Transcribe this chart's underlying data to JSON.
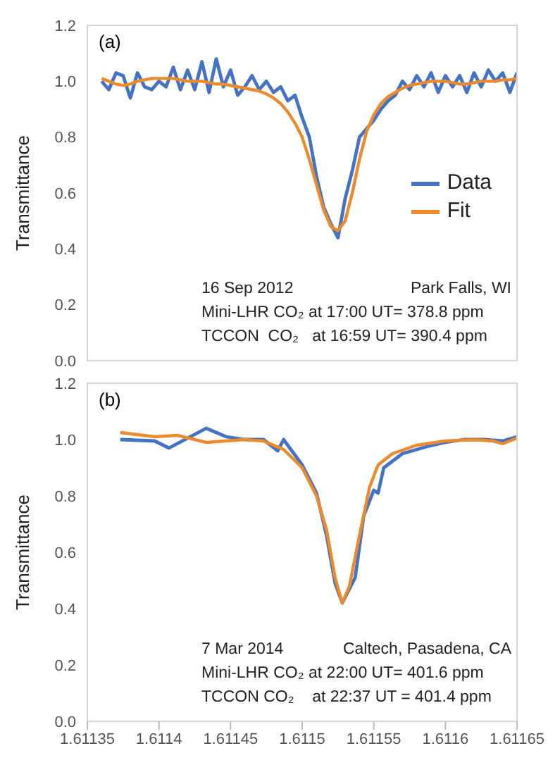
{
  "chart_data": [
    {
      "type": "line",
      "ylabel": "Transmittance",
      "xlim": [
        1.61135,
        1.61165
      ],
      "xticks": [
        1.61135,
        1.6114,
        1.61145,
        1.6115,
        1.61155,
        1.6116,
        1.61165
      ],
      "ylim": [
        0,
        1.2
      ],
      "yticks": [
        {
          "value": 0,
          "label": "0.0"
        },
        {
          "value": 0.2,
          "label": "0.2"
        },
        {
          "value": 0.4,
          "label": "0.4"
        },
        {
          "value": 0.6,
          "label": "0.6"
        },
        {
          "value": 0.8,
          "label": "0.8"
        },
        {
          "value": 1,
          "label": "1.0"
        },
        {
          "value": 1.2,
          "label": "1.2"
        }
      ],
      "tick_labels": "y",
      "grid": false,
      "legend": "right",
      "marker": "none",
      "line_style": "solid",
      "annotations": [
        "(a)",
        "16 Sep 2012",
        "Park Falls, WI",
        "Mini-LHR CO₂ at 17:00 UT= 378.8 ppm",
        "TCCON  CO₂   at 16:59 UT= 390.4 ppm"
      ],
      "x": [
        1.61136,
        1.611365,
        1.61137,
        1.611375,
        1.61138,
        1.611385,
        1.61139,
        1.611395,
        1.6114,
        1.611405,
        1.61141,
        1.611415,
        1.61142,
        1.611425,
        1.61143,
        1.611435,
        1.61144,
        1.611445,
        1.61145,
        1.611455,
        1.61146,
        1.611465,
        1.61147,
        1.611475,
        1.61148,
        1.611485,
        1.61149,
        1.611495,
        1.6115,
        1.611505,
        1.61151,
        1.611515,
        1.61152,
        1.611525,
        1.61153,
        1.611535,
        1.61154,
        1.611545,
        1.61155,
        1.611555,
        1.61156,
        1.611565,
        1.61157,
        1.611575,
        1.61158,
        1.611585,
        1.61159,
        1.611595,
        1.6116,
        1.611605,
        1.61161,
        1.611615,
        1.61162,
        1.611625,
        1.61163,
        1.611635,
        1.61164,
        1.611645,
        1.61165
      ],
      "series": [
        {
          "name": "Data",
          "color": "#4472c4",
          "values": [
            1.0,
            0.97,
            1.03,
            1.02,
            0.94,
            1.03,
            0.98,
            0.97,
            1.0,
            0.98,
            1.05,
            0.97,
            1.04,
            0.97,
            1.07,
            0.96,
            1.08,
            0.98,
            1.04,
            0.95,
            0.98,
            1.02,
            0.97,
            1.0,
            0.96,
            0.98,
            0.93,
            0.95,
            0.87,
            0.8,
            0.66,
            0.55,
            0.49,
            0.44,
            0.58,
            0.68,
            0.8,
            0.83,
            0.86,
            0.9,
            0.93,
            0.95,
            1.0,
            0.97,
            1.02,
            0.98,
            1.03,
            0.96,
            1.02,
            0.98,
            1.02,
            0.96,
            1.03,
            0.98,
            1.04,
            1.0,
            1.03,
            0.96,
            1.03
          ]
        },
        {
          "name": "Fit",
          "color": "#ed8b2c",
          "values": [
            1.01,
            1.0,
            0.99,
            0.985,
            0.99,
            1.0,
            1.005,
            1.01,
            1.01,
            1.01,
            1.01,
            1.005,
            1.0,
            1.0,
            1.0,
            0.995,
            0.99,
            0.99,
            0.985,
            0.98,
            0.975,
            0.97,
            0.965,
            0.955,
            0.94,
            0.92,
            0.89,
            0.85,
            0.8,
            0.72,
            0.63,
            0.54,
            0.48,
            0.465,
            0.5,
            0.6,
            0.72,
            0.82,
            0.88,
            0.92,
            0.945,
            0.96,
            0.975,
            0.985,
            0.99,
            0.995,
            1.0,
            1.0,
            1.0,
            0.995,
            0.99,
            0.99,
            0.995,
            1.0,
            1.0,
            1.0,
            1.005,
            1.005,
            1.01
          ]
        }
      ]
    },
    {
      "type": "line",
      "ylabel": "Transmittance",
      "xlim": [
        1.61135,
        1.61165
      ],
      "xticks": [
        1.61135,
        1.6114,
        1.61145,
        1.6115,
        1.61155,
        1.6116,
        1.61165
      ],
      "ylim": [
        0,
        1.2
      ],
      "yticks": [
        {
          "value": 0,
          "label": "0.0"
        },
        {
          "value": 0.2,
          "label": "0.2"
        },
        {
          "value": 0.4,
          "label": "0.4"
        },
        {
          "value": 0.6,
          "label": "0.6"
        },
        {
          "value": 0.8,
          "label": "0.8"
        },
        {
          "value": 1,
          "label": "1.0"
        },
        {
          "value": 1.2,
          "label": "1.2"
        }
      ],
      "grid": false,
      "marker": "none",
      "line_style": "solid",
      "annotations": [
        "(b)",
        "7 Mar 2014",
        "Caltech, Pasadena, CA",
        "Mini-LHR CO₂ at 22:00 UT= 401.6 ppm",
        "TCCON CO₂    at 22:37 UT = 401.4 ppm"
      ],
      "series": [
        {
          "color": "#4472c4",
          "x": [
            1.611373,
            1.611397,
            1.611407,
            1.611433,
            1.611447,
            1.61146,
            1.611473,
            1.611483,
            1.611487,
            1.6115,
            1.61151,
            1.611517,
            1.611523,
            1.611528,
            1.611537,
            1.611543,
            1.61155,
            1.611553,
            1.611557,
            1.61157,
            1.611587,
            1.6116,
            1.611613,
            1.611627,
            1.61164,
            1.61165
          ],
          "values": [
            1.0,
            0.995,
            0.97,
            1.04,
            1.01,
            1.0,
            1.0,
            0.96,
            1.0,
            0.91,
            0.81,
            0.66,
            0.49,
            0.42,
            0.51,
            0.73,
            0.82,
            0.81,
            0.9,
            0.95,
            0.975,
            0.99,
            1.0,
            1.0,
            0.995,
            1.01
          ]
        },
        {
          "color": "#ed8b2c",
          "x": [
            1.611373,
            1.611397,
            1.611413,
            1.611433,
            1.61146,
            1.611473,
            1.611487,
            1.6115,
            1.61151,
            1.611517,
            1.611523,
            1.611528,
            1.611533,
            1.61154,
            1.611547,
            1.611553,
            1.611563,
            1.61158,
            1.6116,
            1.61162,
            1.611633,
            1.61164,
            1.61165
          ],
          "values": [
            1.025,
            1.01,
            1.015,
            0.99,
            1.0,
            0.995,
            0.965,
            0.9,
            0.8,
            0.68,
            0.51,
            0.42,
            0.48,
            0.66,
            0.83,
            0.91,
            0.95,
            0.98,
            0.995,
            1.0,
            0.995,
            0.985,
            1.005
          ]
        }
      ]
    }
  ]
}
